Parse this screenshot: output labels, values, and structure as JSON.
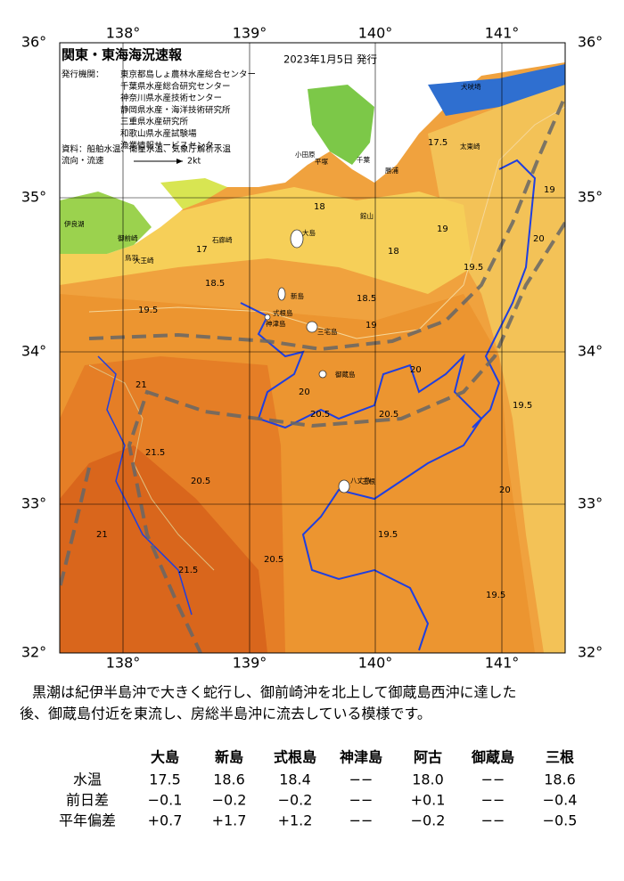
{
  "header": {
    "title": "関東・東海海況速報",
    "date": "2023年1月5日 発行",
    "publisher_label": "発行機関：",
    "publishers": [
      "東京都島しょ農林水産総合センター",
      "千葉県水産総合研究センター",
      "神奈川県水産技術センター",
      "静岡県水産・海洋技術研究所",
      "三重県水産研究所",
      "和歌山県水産試験場",
      "漁業情報サービスセンター"
    ],
    "data_source": "資料：船舶水温、衛星水温、気象庁解析水温",
    "flow_label": "流向・流速",
    "flow_scale": "2kt"
  },
  "axes": {
    "lon_labels": [
      "138°",
      "139°",
      "140°",
      "141°"
    ],
    "lat_labels": [
      "36°",
      "35°",
      "34°",
      "33°",
      "32°"
    ]
  },
  "map": {
    "place_names": [
      "大島",
      "新島",
      "式根島",
      "神津島",
      "三宅島",
      "御蔵島",
      "八丈島",
      "三根",
      "犬吠埼",
      "太東崎",
      "勝浦",
      "千葉",
      "館山",
      "平塚",
      "小田原",
      "石廊崎",
      "御前崎",
      "伊良湖",
      "鳥羽",
      "大王崎"
    ],
    "contour_labels": [
      "17.5",
      "18",
      "18.5",
      "17",
      "18",
      "19",
      "19.5",
      "20",
      "20.5",
      "21",
      "21.5",
      "20.5",
      "21",
      "20",
      "20.5",
      "19.5",
      "20",
      "19.5",
      "19.5",
      "19",
      "18.5",
      "19.5",
      "20",
      "19",
      "21.5",
      "20.5"
    ]
  },
  "description": [
    "黒潮は紀伊半島沖で大きく蛇行し、御前崎沖を北上して御蔵島西沖に達した",
    "後、御蔵島付近を東流し、房総半島沖に流去している模様です。"
  ],
  "table": {
    "columns": [
      "大島",
      "新島",
      "式根島",
      "神津島",
      "阿古",
      "御蔵島",
      "三根"
    ],
    "rows": [
      {
        "label": "水温",
        "values": [
          "17.5",
          "18.6",
          "18.4",
          "−−",
          "18.0",
          "−−",
          "18.6"
        ]
      },
      {
        "label": "前日差",
        "values": [
          "−0.1",
          "−0.2",
          "−0.2",
          "−−",
          "+0.1",
          "−−",
          "−0.4"
        ]
      },
      {
        "label": "平年偏差",
        "values": [
          "+0.7",
          "+1.7",
          "+1.2",
          "−−",
          "−0.2",
          "−−",
          "−0.5"
        ]
      }
    ]
  }
}
